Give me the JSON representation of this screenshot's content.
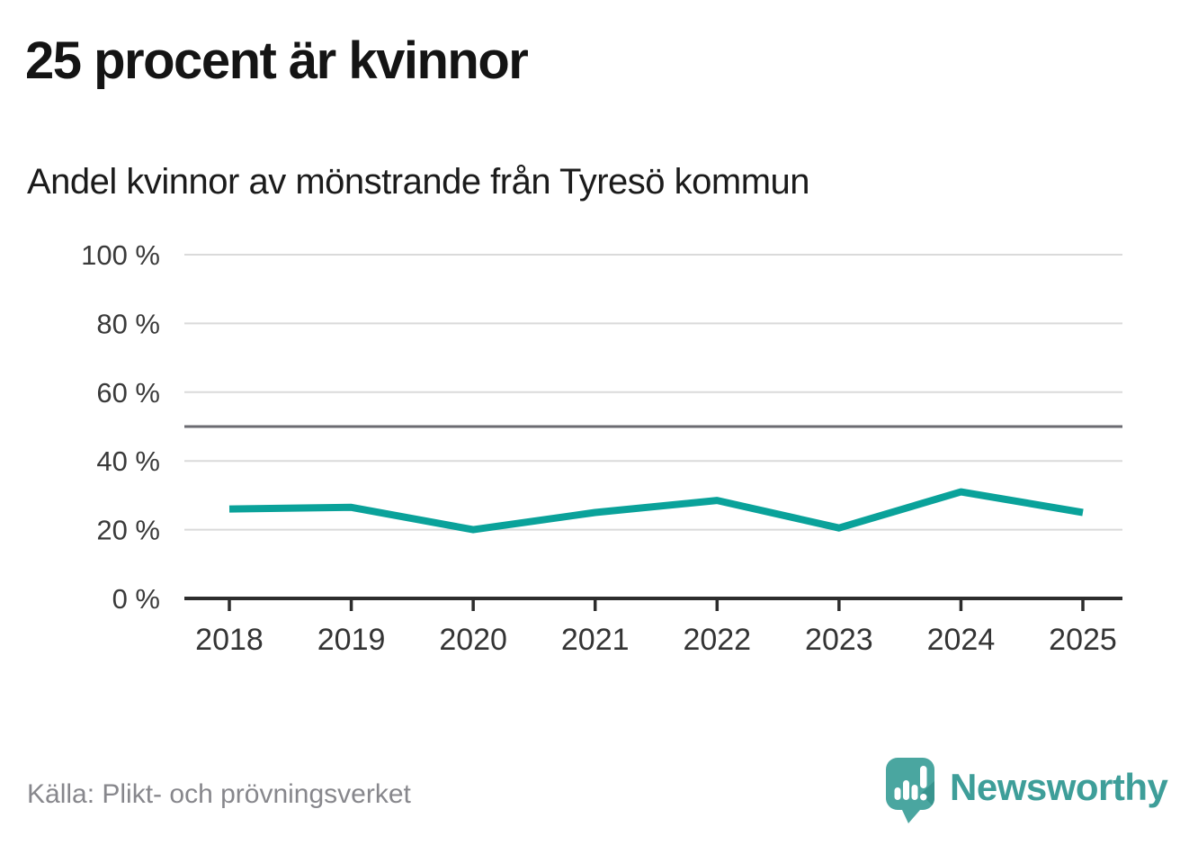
{
  "header": {
    "title": "25 procent är kvinnor",
    "subtitle": "Andel kvinnor av mönstrande från Tyresö kommun"
  },
  "footer": {
    "source": "Källa: Plikt- och prövningsverket",
    "brand": "Newsworthy"
  },
  "colors": {
    "line": "#0aa29a",
    "grid": "#dadada",
    "ref_line": "#6b6b71",
    "axis": "#2d2d2d",
    "tick_label": "#3a3a3a",
    "source_text": "#87878c",
    "brand_teal": "#3e9e99",
    "logo_bubble": "#4aa6a0",
    "logo_shade": "#38948e"
  },
  "chart_data": {
    "type": "line",
    "title": "25 procent är kvinnor",
    "subtitle": "Andel kvinnor av mönstrande från Tyresö kommun",
    "categories": [
      "2018",
      "2019",
      "2020",
      "2021",
      "2022",
      "2023",
      "2024",
      "2025"
    ],
    "series": [
      {
        "name": "Andel kvinnor av mönstrande",
        "values": [
          26,
          26.5,
          20,
          25,
          28.5,
          20.5,
          31,
          25
        ]
      }
    ],
    "unit": "%",
    "ylim": [
      0,
      100
    ],
    "yticks": [
      0,
      20,
      40,
      60,
      80,
      100
    ],
    "ytick_labels": [
      "0 %",
      "20 %",
      "40 %",
      "60 %",
      "80 %",
      "100 %"
    ],
    "reference_line": 50,
    "grid": true,
    "legend": false,
    "xlabel": "",
    "ylabel": ""
  }
}
